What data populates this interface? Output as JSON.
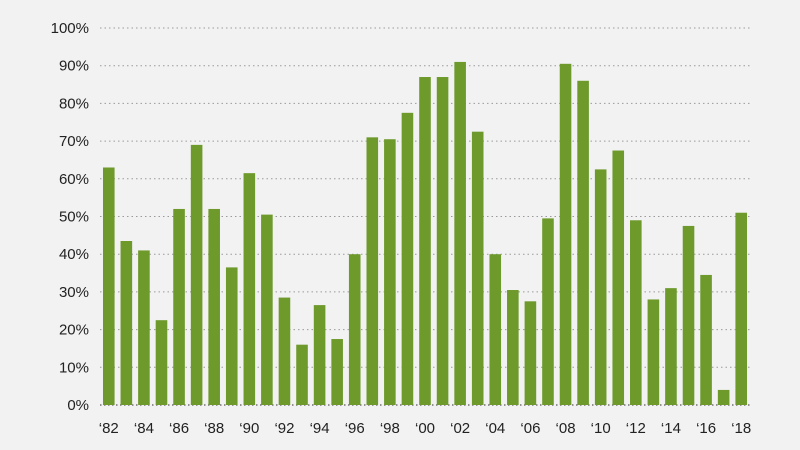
{
  "chart_data": {
    "type": "bar",
    "categories": [
      "1982",
      "1983",
      "1984",
      "1985",
      "1986",
      "1987",
      "1988",
      "1989",
      "1990",
      "1991",
      "1992",
      "1993",
      "1994",
      "1995",
      "1996",
      "1997",
      "1998",
      "1999",
      "2000",
      "2001",
      "2002",
      "2003",
      "2004",
      "2005",
      "2006",
      "2007",
      "2008",
      "2009",
      "2010",
      "2011",
      "2012",
      "2013",
      "2014",
      "2015",
      "2016",
      "2017",
      "2018"
    ],
    "values": [
      63,
      43.5,
      41,
      22.5,
      52,
      69,
      52,
      36.5,
      61.5,
      50.5,
      28.5,
      16,
      26.5,
      17.5,
      40,
      71,
      70.5,
      77.5,
      87,
      87,
      91,
      72.5,
      40,
      30.5,
      27.5,
      49.5,
      90.5,
      86,
      62.5,
      67.5,
      49,
      28,
      31,
      47.5,
      34.5,
      4,
      51
    ],
    "x_tick_labels": [
      "‘82",
      "‘84",
      "‘86",
      "‘88",
      "‘90",
      "‘92",
      "‘94",
      "‘96",
      "‘98",
      "‘00",
      "‘02",
      "‘04",
      "‘06",
      "‘08",
      "‘10",
      "‘12",
      "‘14",
      "‘16",
      "‘18"
    ],
    "y_tick_labels": [
      "0%",
      "10%",
      "20%",
      "30%",
      "40%",
      "50%",
      "60%",
      "70%",
      "80%",
      "90%",
      "100%"
    ],
    "ylim": [
      0,
      100
    ],
    "title": "",
    "xlabel": "",
    "ylabel": "",
    "grid": true,
    "legend": "none",
    "bar_color": "#6e9a2c"
  }
}
